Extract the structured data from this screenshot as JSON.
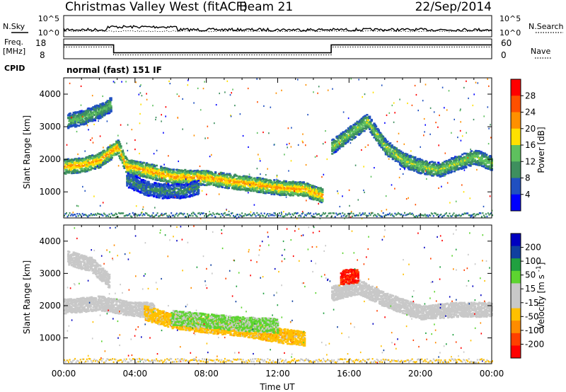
{
  "header": {
    "title": "Christmas Valley West (fitACF)",
    "beam": "Beam 21",
    "date": "22/Sep/2014"
  },
  "sky_panel": {
    "left_label": "N.Sky",
    "right_label": "N.Search",
    "left_ticks": [
      "10^5",
      "10^0"
    ],
    "right_ticks": [
      "10^5",
      "10^0"
    ]
  },
  "freq_panel": {
    "left_label_1": "Freq.",
    "left_label_2": "[MHz]",
    "right_label": "Nave",
    "left_ticks": [
      "18",
      "8"
    ],
    "right_ticks": [
      "60",
      "0"
    ]
  },
  "cpid": {
    "label": "CPID",
    "value": "normal (fast) 151 IF"
  },
  "colors": {
    "power_scale": [
      "#0000ff",
      "#2050c0",
      "#3e8f5e",
      "#5ec05e",
      "#ffe000",
      "#ff9000",
      "#ff5000",
      "#ff0000"
    ],
    "velocity_scale": [
      "#ff0000",
      "#ff4000",
      "#ff8c00",
      "#ffc000",
      "#c8c8c8",
      "#c8c8c8",
      "#5dd430",
      "#20a040",
      "#1040a0",
      "#0000c0"
    ],
    "ground_scatter": "#c8c8c8"
  },
  "chart_data": [
    {
      "type": "heatmap",
      "name": "power",
      "ylabel": "Slant Range [km]",
      "y_ticks": [
        "1000",
        "2000",
        "3000",
        "4000"
      ],
      "ylim": [
        200,
        4500
      ],
      "xlim": [
        0,
        24
      ],
      "colorbar_label": "Power [dB]",
      "colorbar_ticks": [
        "4",
        "8",
        "12",
        "16",
        "20",
        "24",
        "28"
      ],
      "colorbar_range": [
        0,
        32
      ],
      "bands": [
        {
          "x": [
            0,
            1,
            2,
            3,
            3.5,
            4.5,
            6,
            8,
            10,
            12,
            13.5,
            14.5
          ],
          "y": [
            1800,
            1850,
            2000,
            2400,
            1800,
            1700,
            1500,
            1450,
            1300,
            1150,
            1100,
            900
          ],
          "value": 22
        },
        {
          "x": [
            3.5,
            4.5,
            5.5,
            6.5,
            7.5
          ],
          "y": [
            1400,
            1150,
            1050,
            1050,
            1150
          ],
          "value": 10
        },
        {
          "x": [
            0.2,
            1,
            2,
            2.6
          ],
          "y": [
            3200,
            3300,
            3500,
            3700
          ],
          "value": 14
        },
        {
          "x": [
            15,
            16,
            17,
            18,
            19,
            20,
            21,
            22,
            23,
            24
          ],
          "y": [
            2400,
            2800,
            3200,
            2400,
            2000,
            1800,
            1700,
            1900,
            2100,
            1900
          ],
          "value": 16
        }
      ]
    },
    {
      "type": "heatmap",
      "name": "velocity",
      "ylabel": "Slant Range [km]",
      "xlabel": "Time UT",
      "x_ticks": [
        "00:00",
        "04:00",
        "08:00",
        "12:00",
        "16:00",
        "20:00",
        "00:00"
      ],
      "y_ticks": [
        "1000",
        "2000",
        "3000",
        "4000"
      ],
      "ylim": [
        200,
        4500
      ],
      "xlim": [
        0,
        24
      ],
      "colorbar_label": "Velocity [m s^-1]",
      "colorbar_ticks": [
        "200",
        "100",
        "50",
        "15",
        "-15",
        "-50",
        "-100",
        "-200"
      ],
      "colorbar_range": [
        -250,
        250
      ],
      "bands": [
        {
          "x": [
            0,
            1,
            2,
            3,
            4,
            5
          ],
          "y": [
            2000,
            2050,
            2100,
            2000,
            1900,
            1900
          ],
          "value": 0,
          "ground_scatter": true
        },
        {
          "x": [
            4.5,
            6,
            8,
            10,
            12,
            13.5
          ],
          "y": [
            1800,
            1550,
            1400,
            1300,
            1100,
            1000
          ],
          "value": -75
        },
        {
          "x": [
            6,
            8,
            10,
            12
          ],
          "y": [
            1650,
            1550,
            1450,
            1400
          ],
          "value": 60
        },
        {
          "x": [
            0.2,
            1.5,
            2.5
          ],
          "y": [
            3500,
            3300,
            2800
          ],
          "value": 0,
          "ground_scatter": true
        },
        {
          "x": [
            15,
            16.5,
            18,
            20,
            22,
            24
          ],
          "y": [
            2400,
            2600,
            2200,
            1800,
            1900,
            1900
          ],
          "value": 0,
          "ground_scatter": true
        },
        {
          "x": [
            15.5,
            16.5
          ],
          "y": [
            2900,
            2950
          ],
          "value": -200
        }
      ]
    },
    {
      "type": "line",
      "name": "frequency",
      "x": [
        0,
        2.8,
        2.8,
        15,
        15,
        24
      ],
      "y": [
        15,
        15,
        11,
        11,
        15,
        15
      ],
      "ylim": [
        8,
        18
      ]
    }
  ]
}
